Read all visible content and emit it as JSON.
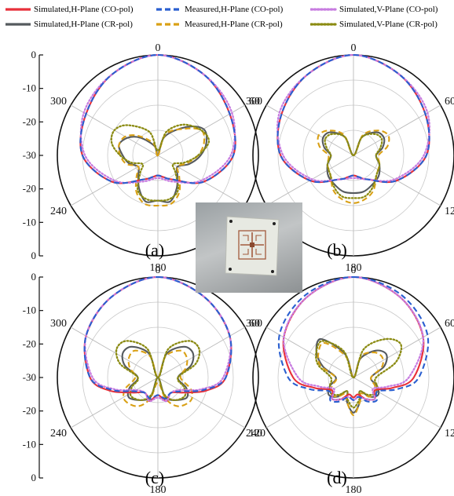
{
  "legend": [
    {
      "label": "Simulated,H-Plane (CO-pol)",
      "color": "#e8303a",
      "dash": "solid"
    },
    {
      "label": "Measured,H-Plane (CO-pol)",
      "color": "#2a5fd0",
      "dash": "dash"
    },
    {
      "label": "Simulated,V-Plane (CO-pol)",
      "color": "#c77ce0",
      "dash": "dot"
    },
    {
      "label": "Simulated,H-Plane (CR-pol)",
      "color": "#555a5e",
      "dash": "solid"
    },
    {
      "label": "Measured,H-Plane (CR-pol)",
      "color": "#d9a015",
      "dash": "dash"
    },
    {
      "label": "Simulated,V-Plane (CR-pol)",
      "color": "#8b8b12",
      "dash": "dot"
    }
  ],
  "chart_data": [
    {
      "type": "polar-line",
      "panel": "(a)",
      "rlim": [
        -40,
        0
      ],
      "radial_ticks": [
        "0",
        "-10",
        "-20",
        "-30",
        "-20",
        "-10",
        "0"
      ],
      "angle_ticks": [
        "0",
        "60",
        "120",
        "180",
        "240",
        "300"
      ],
      "series": [
        {
          "legend": 0,
          "theta": [
            0,
            30,
            60,
            90,
            120,
            150,
            165,
            180,
            195,
            210,
            240,
            270,
            300,
            330,
            360
          ],
          "r": [
            0,
            -3,
            -7,
            -10,
            -19,
            -29,
            -31,
            -32,
            -31,
            -29,
            -19,
            -10,
            -7,
            -3,
            0
          ]
        },
        {
          "legend": 1,
          "theta": [
            0,
            30,
            60,
            90,
            120,
            150,
            165,
            180,
            195,
            210,
            240,
            270,
            300,
            330,
            360
          ],
          "r": [
            0,
            -3,
            -7,
            -10,
            -19,
            -29,
            -31,
            -32,
            -31,
            -29,
            -19,
            -10,
            -7,
            -3,
            0
          ]
        },
        {
          "legend": 2,
          "theta": [
            0,
            30,
            60,
            90,
            120,
            150,
            180,
            210,
            240,
            270,
            300,
            330,
            360
          ],
          "r": [
            0,
            -3,
            -6,
            -11,
            -20,
            -28,
            -31,
            -28,
            -20,
            -11,
            -6,
            -3,
            0
          ]
        },
        {
          "legend": 3,
          "theta": [
            0,
            20,
            45,
            60,
            75,
            90,
            105,
            120,
            135,
            150,
            165,
            180,
            195,
            210,
            225,
            240,
            255,
            270,
            285,
            300,
            315,
            340,
            360
          ],
          "r": [
            -40,
            -32,
            -24,
            -19,
            -20,
            -23,
            -27,
            -31,
            -29,
            -25,
            -21,
            -22,
            -21,
            -25,
            -29,
            -31,
            -28,
            -26,
            -24,
            -26,
            -30,
            -36,
            -40
          ]
        },
        {
          "legend": 4,
          "theta": [
            0,
            20,
            45,
            60,
            75,
            90,
            105,
            120,
            135,
            150,
            165,
            180,
            195,
            210,
            225,
            240,
            255,
            270,
            285,
            300,
            315,
            340,
            360
          ],
          "r": [
            -40,
            -31,
            -25,
            -20,
            -21,
            -24,
            -28,
            -31,
            -28,
            -23,
            -20,
            -20,
            -20,
            -23,
            -28,
            -31,
            -27,
            -25,
            -24,
            -25,
            -29,
            -35,
            -40
          ]
        },
        {
          "legend": 5,
          "theta": [
            0,
            20,
            40,
            60,
            75,
            90,
            105,
            120,
            135,
            150,
            165,
            180,
            195,
            210,
            225,
            240,
            255,
            270,
            285,
            300,
            315,
            340,
            360
          ],
          "r": [
            -38,
            -30,
            -24,
            -20,
            -19,
            -24,
            -29,
            -33,
            -30,
            -24,
            -22,
            -22,
            -22,
            -24,
            -30,
            -33,
            -29,
            -25,
            -21,
            -20,
            -23,
            -30,
            -38
          ]
        }
      ]
    },
    {
      "type": "polar-line",
      "panel": "(b)",
      "rlim": [
        -40,
        0
      ],
      "angle_ticks": [
        "0",
        "60",
        "120",
        "180",
        "240",
        "300"
      ],
      "series": [
        {
          "legend": 0,
          "theta": [
            0,
            30,
            60,
            90,
            120,
            150,
            165,
            180,
            195,
            210,
            240,
            270,
            300,
            330,
            360
          ],
          "r": [
            0,
            -3,
            -7,
            -11,
            -20,
            -29,
            -31,
            -32,
            -31,
            -29,
            -20,
            -11,
            -7,
            -3,
            0
          ]
        },
        {
          "legend": 1,
          "theta": [
            0,
            30,
            60,
            90,
            120,
            150,
            165,
            180,
            195,
            210,
            240,
            270,
            300,
            330,
            360
          ],
          "r": [
            0,
            -3,
            -7,
            -11,
            -20,
            -29,
            -31,
            -32,
            -31,
            -29,
            -20,
            -11,
            -7,
            -3,
            0
          ]
        },
        {
          "legend": 2,
          "theta": [
            0,
            30,
            60,
            90,
            120,
            150,
            180,
            210,
            240,
            270,
            300,
            330,
            360
          ],
          "r": [
            0,
            -3,
            -6,
            -12,
            -21,
            -29,
            -31,
            -29,
            -21,
            -12,
            -6,
            -3,
            0
          ]
        },
        {
          "legend": 3,
          "theta": [
            0,
            25,
            45,
            60,
            75,
            90,
            110,
            130,
            150,
            165,
            180,
            195,
            210,
            230,
            250,
            270,
            285,
            300,
            315,
            335,
            360
          ],
          "r": [
            -40,
            -32,
            -27,
            -26,
            -28,
            -31,
            -29,
            -27,
            -26,
            -25,
            -25,
            -25,
            -26,
            -27,
            -29,
            -31,
            -28,
            -26,
            -27,
            -32,
            -40
          ]
        },
        {
          "legend": 4,
          "theta": [
            0,
            25,
            45,
            60,
            75,
            90,
            110,
            130,
            150,
            165,
            180,
            195,
            210,
            230,
            250,
            270,
            285,
            300,
            315,
            335,
            360
          ],
          "r": [
            -40,
            -31,
            -26,
            -24,
            -26,
            -30,
            -29,
            -28,
            -24,
            -22,
            -21,
            -22,
            -24,
            -28,
            -29,
            -30,
            -26,
            -24,
            -26,
            -31,
            -40
          ]
        },
        {
          "legend": 5,
          "theta": [
            0,
            25,
            45,
            60,
            75,
            90,
            110,
            130,
            150,
            165,
            180,
            195,
            210,
            230,
            250,
            270,
            285,
            300,
            315,
            335,
            360
          ],
          "r": [
            -40,
            -32,
            -28,
            -27,
            -29,
            -31,
            -29,
            -28,
            -25,
            -23,
            -23,
            -23,
            -25,
            -28,
            -29,
            -31,
            -29,
            -27,
            -28,
            -32,
            -40
          ]
        }
      ]
    },
    {
      "type": "polar-line",
      "panel": "(c)",
      "rlim": [
        -40,
        0
      ],
      "radial_ticks": [
        "0",
        "-10",
        "-20",
        "-30",
        "-20",
        "-10",
        "0"
      ],
      "angle_ticks": [
        "0",
        "60",
        "120",
        "180",
        "240",
        "300"
      ],
      "series": [
        {
          "legend": 0,
          "theta": [
            0,
            30,
            60,
            90,
            105,
            120,
            140,
            160,
            180,
            200,
            220,
            240,
            255,
            270,
            300,
            330,
            360
          ],
          "r": [
            0,
            -3,
            -7,
            -13,
            -20,
            -28,
            -32,
            -30,
            -33,
            -30,
            -32,
            -28,
            -20,
            -13,
            -7,
            -3,
            0
          ]
        },
        {
          "legend": 1,
          "theta": [
            0,
            30,
            60,
            90,
            105,
            120,
            140,
            160,
            180,
            200,
            220,
            240,
            255,
            270,
            300,
            330,
            360
          ],
          "r": [
            0,
            -3,
            -7,
            -13,
            -21,
            -29,
            -32,
            -31,
            -33,
            -31,
            -32,
            -29,
            -21,
            -13,
            -7,
            -3,
            0
          ]
        },
        {
          "legend": 2,
          "theta": [
            0,
            30,
            60,
            90,
            105,
            120,
            140,
            160,
            180,
            200,
            220,
            240,
            255,
            270,
            300,
            330,
            360
          ],
          "r": [
            0,
            -3,
            -7,
            -14,
            -22,
            -30,
            -32,
            -30,
            -32,
            -30,
            -32,
            -30,
            -22,
            -14,
            -7,
            -3,
            0
          ]
        },
        {
          "legend": 3,
          "theta": [
            0,
            20,
            40,
            55,
            70,
            90,
            110,
            125,
            145,
            160,
            180,
            200,
            215,
            235,
            250,
            270,
            290,
            305,
            320,
            340,
            360
          ],
          "r": [
            -40,
            -30,
            -24,
            -23,
            -26,
            -32,
            -28,
            -26,
            -29,
            -32,
            -40,
            -32,
            -29,
            -26,
            -28,
            -32,
            -26,
            -23,
            -24,
            -30,
            -40
          ]
        },
        {
          "legend": 4,
          "theta": [
            0,
            20,
            40,
            55,
            70,
            90,
            110,
            125,
            145,
            160,
            180,
            200,
            215,
            235,
            250,
            270,
            290,
            305,
            320,
            340,
            360
          ],
          "r": [
            -40,
            -31,
            -26,
            -26,
            -28,
            -31,
            -26,
            -24,
            -26,
            -31,
            -38,
            -31,
            -26,
            -24,
            -26,
            -31,
            -28,
            -26,
            -26,
            -31,
            -40
          ]
        },
        {
          "legend": 5,
          "theta": [
            0,
            20,
            40,
            55,
            70,
            90,
            110,
            125,
            145,
            160,
            180,
            200,
            215,
            235,
            250,
            270,
            290,
            305,
            320,
            340,
            360
          ],
          "r": [
            -40,
            -28,
            -21,
            -20,
            -24,
            -32,
            -29,
            -27,
            -29,
            -33,
            -40,
            -33,
            -29,
            -27,
            -29,
            -32,
            -24,
            -20,
            -21,
            -28,
            -40
          ]
        }
      ]
    },
    {
      "type": "polar-line",
      "panel": "(d)",
      "rlim": [
        -40,
        0
      ],
      "angle_ticks": [
        "0",
        "60",
        "120",
        "180",
        "240",
        "300"
      ],
      "series": [
        {
          "legend": 0,
          "theta": [
            0,
            30,
            60,
            90,
            105,
            120,
            135,
            150,
            165,
            180,
            195,
            210,
            225,
            240,
            255,
            270,
            300,
            330,
            360
          ],
          "r": [
            0,
            -3,
            -8,
            -16,
            -24,
            -30,
            -28,
            -30,
            -33,
            -32,
            -33,
            -30,
            -28,
            -30,
            -24,
            -16,
            -8,
            -3,
            0
          ]
        },
        {
          "legend": 1,
          "theta": [
            0,
            30,
            60,
            90,
            105,
            120,
            135,
            150,
            165,
            180,
            195,
            210,
            225,
            240,
            255,
            270,
            300,
            330,
            360
          ],
          "r": [
            0,
            -2,
            -6,
            -14,
            -22,
            -29,
            -27,
            -29,
            -32,
            -31,
            -32,
            -29,
            -27,
            -29,
            -22,
            -14,
            -6,
            -2,
            0
          ]
        },
        {
          "legend": 2,
          "theta": [
            0,
            30,
            60,
            90,
            105,
            120,
            135,
            150,
            165,
            180,
            195,
            210,
            225,
            240,
            255,
            270,
            300,
            330,
            360
          ],
          "r": [
            0,
            -3,
            -8,
            -18,
            -26,
            -31,
            -28,
            -30,
            -32,
            -31,
            -32,
            -30,
            -28,
            -31,
            -26,
            -18,
            -8,
            -3,
            0
          ]
        },
        {
          "legend": 3,
          "theta": [
            0,
            20,
            40,
            55,
            70,
            90,
            110,
            125,
            140,
            155,
            165,
            180,
            195,
            205,
            220,
            235,
            250,
            270,
            290,
            305,
            320,
            340,
            360
          ],
          "r": [
            -40,
            -32,
            -26,
            -24,
            -27,
            -33,
            -30,
            -28,
            -30,
            -34,
            -30,
            -26,
            -30,
            -34,
            -30,
            -28,
            -30,
            -33,
            -27,
            -22,
            -20,
            -30,
            -40
          ]
        },
        {
          "legend": 4,
          "theta": [
            0,
            20,
            40,
            55,
            70,
            90,
            110,
            125,
            140,
            155,
            165,
            180,
            195,
            205,
            220,
            235,
            250,
            270,
            290,
            305,
            320,
            340,
            360
          ],
          "r": [
            -40,
            -31,
            -27,
            -26,
            -28,
            -33,
            -31,
            -29,
            -30,
            -33,
            -30,
            -25,
            -30,
            -33,
            -30,
            -29,
            -31,
            -33,
            -26,
            -23,
            -22,
            -31,
            -40
          ]
        },
        {
          "legend": 5,
          "theta": [
            0,
            20,
            40,
            55,
            70,
            90,
            110,
            125,
            140,
            155,
            165,
            180,
            195,
            205,
            220,
            235,
            250,
            270,
            290,
            305,
            320,
            340,
            360
          ],
          "r": [
            -40,
            -28,
            -20,
            -17,
            -22,
            -31,
            -30,
            -29,
            -31,
            -34,
            -31,
            -28,
            -31,
            -34,
            -31,
            -29,
            -30,
            -31,
            -25,
            -22,
            -21,
            -29,
            -40
          ]
        }
      ]
    }
  ]
}
